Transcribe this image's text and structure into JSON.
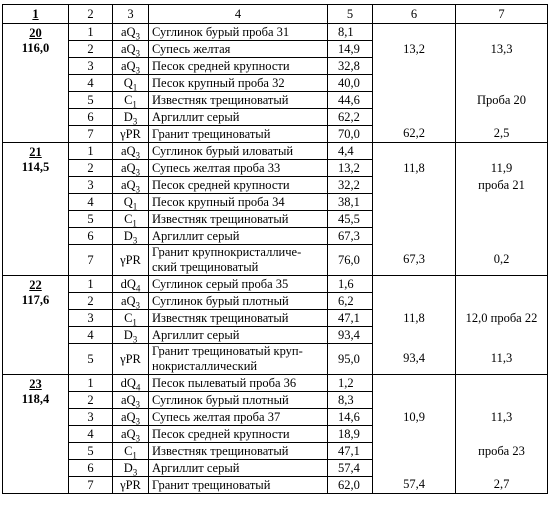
{
  "header": [
    "1",
    "2",
    "3",
    "4",
    "5",
    "6",
    "7"
  ],
  "wells": [
    {
      "number": "20",
      "elevation": "116,0",
      "layers": [
        {
          "n": "1",
          "index": {
            "base": "aQ",
            "sub": "3"
          },
          "description": "Суглинок бурый проба 31",
          "depth": "8,1"
        },
        {
          "n": "2",
          "index": {
            "base": "aQ",
            "sub": "3"
          },
          "description": "Супесь желтая",
          "depth": "14,9",
          "col6": "13,2",
          "col7": "13,3"
        },
        {
          "n": "3",
          "index": {
            "base": "aQ",
            "sub": "3"
          },
          "description": "Песок средней крупности",
          "depth": "32,8"
        },
        {
          "n": "4",
          "index": {
            "base": "Q",
            "sub": "1"
          },
          "description": "Песок крупный проба 32",
          "depth": "40,0"
        },
        {
          "n": "5",
          "index": {
            "base": "C",
            "sub": "1"
          },
          "description": "Известняк трещиноватый",
          "depth": "44,6",
          "col7": "Проба 20"
        },
        {
          "n": "6",
          "index": {
            "base": "D",
            "sub": "3"
          },
          "description": "Аргиллит серый",
          "depth": "62,2"
        },
        {
          "n": "7",
          "index": {
            "base": "γPR"
          },
          "description": "Гранит трещиноватый",
          "depth": "70,0",
          "col6": "62,2",
          "col7": "2,5"
        }
      ]
    },
    {
      "number": "21",
      "elevation": "114,5",
      "layers": [
        {
          "n": "1",
          "index": {
            "base": "aQ",
            "sub": "3"
          },
          "description": "Суглинок бурый иловатый",
          "depth": "4,4"
        },
        {
          "n": "2",
          "index": {
            "base": "aQ",
            "sub": "3"
          },
          "description": "Супесь желтая проба 33",
          "depth": "13,2",
          "col6": "11,8",
          "col7": "11,9"
        },
        {
          "n": "3",
          "index": {
            "base": "aQ",
            "sub": "3"
          },
          "description": "Песок средней крупности",
          "depth": "32,2",
          "col7": "проба 21"
        },
        {
          "n": "4",
          "index": {
            "base": "Q",
            "sub": "1"
          },
          "description": "Песок крупный проба 34",
          "depth": "38,1"
        },
        {
          "n": "5",
          "index": {
            "base": "C",
            "sub": "1"
          },
          "description": "Известняк трещиноватый",
          "depth": "45,5"
        },
        {
          "n": "6",
          "index": {
            "base": "D",
            "sub": "3"
          },
          "description": "Аргиллит серый",
          "depth": "67,3"
        },
        {
          "n": "7",
          "index": {
            "base": "γPR"
          },
          "description": "Гранит крупнокристалличе-\nский трещиноватый",
          "depth": "76,0",
          "col6": "67,3",
          "col7": "0,2"
        }
      ]
    },
    {
      "number": "22",
      "elevation": "117,6",
      "layers": [
        {
          "n": "1",
          "index": {
            "base": "dQ",
            "sub": "4"
          },
          "description": "Суглинок серый проба 35",
          "depth": "1,6"
        },
        {
          "n": "2",
          "index": {
            "base": "aQ",
            "sub": "3"
          },
          "description": "Суглинок бурый плотный",
          "depth": "6,2"
        },
        {
          "n": "3",
          "index": {
            "base": "C",
            "sub": "1"
          },
          "description": "Известняк трещиноватый",
          "depth": "47,1",
          "col6": "11,8",
          "col7": "12,0 проба 22"
        },
        {
          "n": "4",
          "index": {
            "base": "D",
            "sub": "3"
          },
          "description": "Аргиллит серый",
          "depth": "93,4"
        },
        {
          "n": "5",
          "index": {
            "base": "γPR"
          },
          "description": "Гранит трещиноватый круп-\nнокристаллический",
          "depth": "95,0",
          "col6": "93,4",
          "col7": "11,3"
        }
      ]
    },
    {
      "number": "23",
      "elevation": "118,4",
      "layers": [
        {
          "n": "1",
          "index": {
            "base": "dQ",
            "sub": "4"
          },
          "description": "Песок пылеватый проба 36",
          "depth": "1,2"
        },
        {
          "n": "2",
          "index": {
            "base": "aQ",
            "sub": "3"
          },
          "description": "Суглинок бурый плотный",
          "depth": "8,3"
        },
        {
          "n": "3",
          "index": {
            "base": "aQ",
            "sub": "3"
          },
          "description": "Супесь желтая проба 37",
          "depth": "14,6",
          "col6": "10,9",
          "col7": "11,3"
        },
        {
          "n": "4",
          "index": {
            "base": "aQ",
            "sub": "3"
          },
          "description": "Песок средней крупности",
          "depth": "18,9"
        },
        {
          "n": "5",
          "index": {
            "base": "C",
            "sub": "1"
          },
          "description": "Известняк трещиноватый",
          "depth": "47,1",
          "col7": "проба 23"
        },
        {
          "n": "6",
          "index": {
            "base": "D",
            "sub": "3"
          },
          "description": "Аргиллит серый",
          "depth": "57,4"
        },
        {
          "n": "7",
          "index": {
            "base": "γPR"
          },
          "description": "Гранит трещиноватый",
          "depth": "62,0",
          "col6": "57,4",
          "col7": "2,7"
        }
      ]
    }
  ]
}
